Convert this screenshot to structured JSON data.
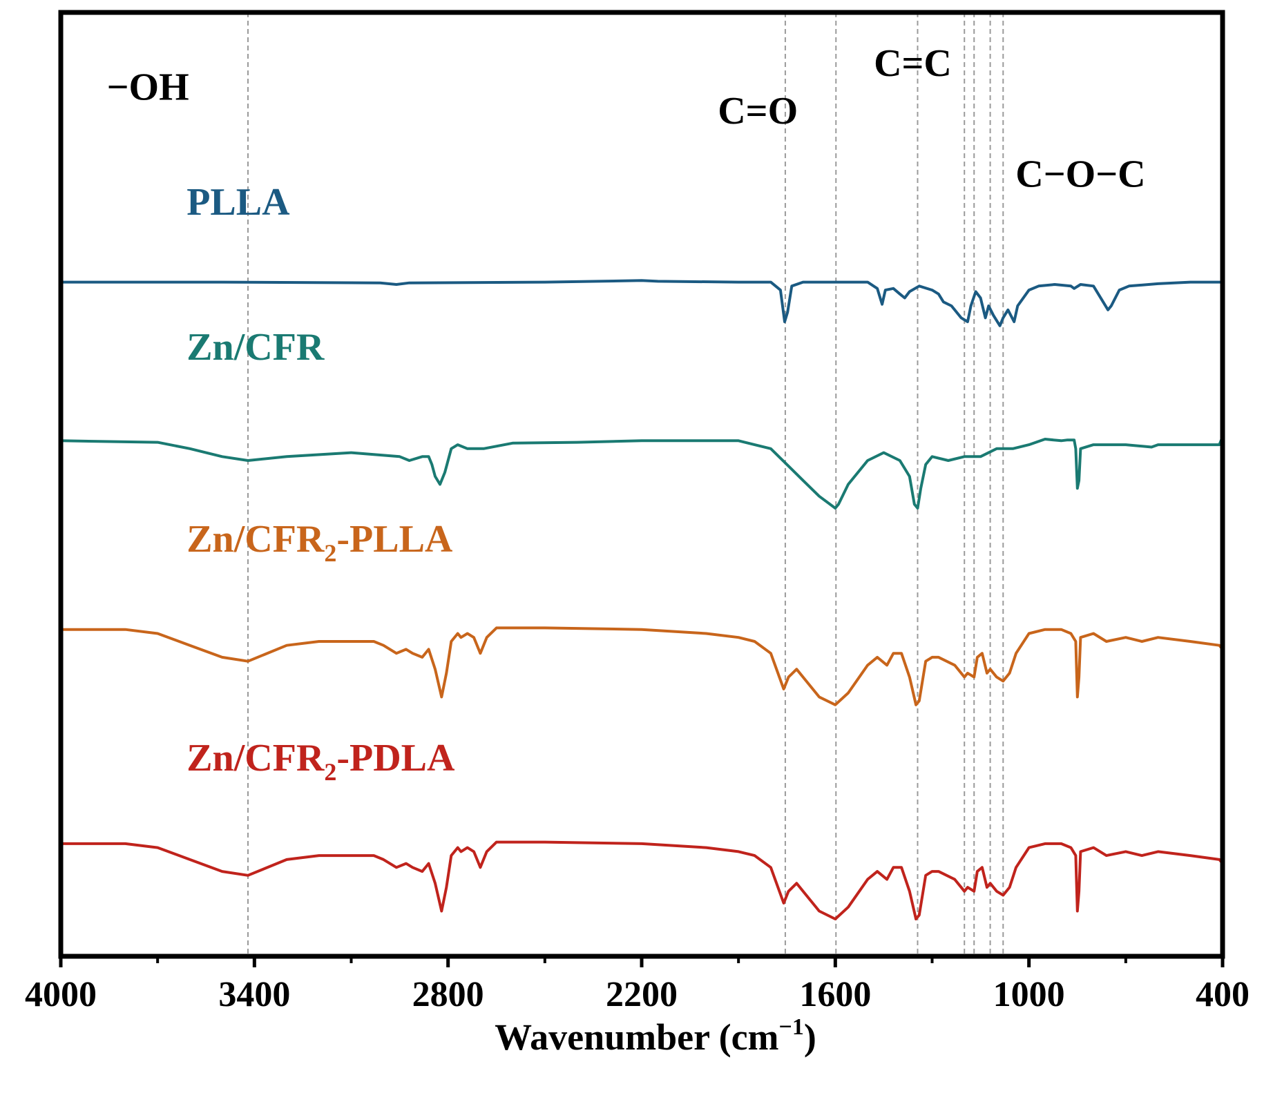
{
  "chart_data": {
    "type": "line",
    "title": "",
    "xlabel": "Wavenumber (cm",
    "xlabel_sup": "−1",
    "xlabel_close": ")",
    "ylabel": "",
    "xlim": [
      4000,
      400
    ],
    "x_reversed": true,
    "xticks": [
      4000,
      3400,
      2800,
      2200,
      1600,
      1000,
      400
    ],
    "xtick_labels": [
      "4000",
      "3400",
      "2800",
      "2200",
      "1600",
      "1000",
      "400"
    ],
    "minor_xticks": [
      3700,
      3100,
      2500,
      1900,
      1300,
      700
    ],
    "grid": false,
    "reference_lines": [
      3420,
      1755,
      1598,
      1345,
      1200,
      1170,
      1120,
      1080
    ],
    "annotations": [
      {
        "label": "−OH",
        "x": 3730,
        "y": 7.3
      },
      {
        "label": "C=O",
        "x": 1840,
        "y": 7.0
      },
      {
        "label": "C=C",
        "x": 1360,
        "y": 7.6
      },
      {
        "label": "C−O−C",
        "x": 840,
        "y": 6.2
      }
    ],
    "series": [
      {
        "name": "PLLA",
        "label_main": "PLLA",
        "label_sub": "",
        "label_tail": "",
        "color": "#1b5a82",
        "label_x": 3610,
        "label_y": 5.85,
        "offset": 5.0,
        "points": [
          [
            4000,
            0
          ],
          [
            3500,
            0
          ],
          [
            3010,
            -0.01
          ],
          [
            2960,
            -0.03
          ],
          [
            2920,
            -0.01
          ],
          [
            2500,
            0
          ],
          [
            2200,
            0.02
          ],
          [
            2150,
            0.01
          ],
          [
            1900,
            0
          ],
          [
            1800,
            0
          ],
          [
            1770,
            -0.1
          ],
          [
            1757,
            -0.5
          ],
          [
            1748,
            -0.38
          ],
          [
            1735,
            -0.05
          ],
          [
            1700,
            0
          ],
          [
            1500,
            0
          ],
          [
            1470,
            -0.08
          ],
          [
            1455,
            -0.28
          ],
          [
            1445,
            -0.1
          ],
          [
            1420,
            -0.08
          ],
          [
            1400,
            -0.15
          ],
          [
            1385,
            -0.2
          ],
          [
            1370,
            -0.12
          ],
          [
            1340,
            -0.05
          ],
          [
            1300,
            -0.1
          ],
          [
            1280,
            -0.15
          ],
          [
            1265,
            -0.25
          ],
          [
            1240,
            -0.3
          ],
          [
            1210,
            -0.45
          ],
          [
            1190,
            -0.5
          ],
          [
            1180,
            -0.3
          ],
          [
            1165,
            -0.12
          ],
          [
            1150,
            -0.2
          ],
          [
            1135,
            -0.45
          ],
          [
            1125,
            -0.3
          ],
          [
            1110,
            -0.42
          ],
          [
            1090,
            -0.55
          ],
          [
            1080,
            -0.45
          ],
          [
            1065,
            -0.35
          ],
          [
            1046,
            -0.5
          ],
          [
            1035,
            -0.3
          ],
          [
            1000,
            -0.1
          ],
          [
            970,
            -0.05
          ],
          [
            920,
            -0.03
          ],
          [
            870,
            -0.05
          ],
          [
            860,
            -0.08
          ],
          [
            840,
            -0.03
          ],
          [
            800,
            -0.05
          ],
          [
            755,
            -0.35
          ],
          [
            745,
            -0.3
          ],
          [
            720,
            -0.1
          ],
          [
            690,
            -0.05
          ],
          [
            600,
            -0.02
          ],
          [
            500,
            0
          ],
          [
            400,
            0
          ]
        ]
      },
      {
        "name": "Zn/CFR",
        "label_main": "Zn/CFR",
        "label_sub": "",
        "label_tail": "",
        "color": "#1a7a72",
        "label_x": 3610,
        "label_y": 4.02,
        "offset": 3.0,
        "points": [
          [
            4000,
            0
          ],
          [
            3700,
            -0.02
          ],
          [
            3600,
            -0.1
          ],
          [
            3500,
            -0.2
          ],
          [
            3420,
            -0.25
          ],
          [
            3300,
            -0.2
          ],
          [
            3100,
            -0.15
          ],
          [
            2950,
            -0.2
          ],
          [
            2920,
            -0.25
          ],
          [
            2880,
            -0.2
          ],
          [
            2860,
            -0.2
          ],
          [
            2850,
            -0.3
          ],
          [
            2840,
            -0.45
          ],
          [
            2825,
            -0.55
          ],
          [
            2810,
            -0.4
          ],
          [
            2790,
            -0.1
          ],
          [
            2770,
            -0.05
          ],
          [
            2740,
            -0.1
          ],
          [
            2690,
            -0.1
          ],
          [
            2600,
            -0.03
          ],
          [
            2400,
            -0.02
          ],
          [
            2200,
            0
          ],
          [
            2000,
            0
          ],
          [
            1900,
            0
          ],
          [
            1850,
            -0.05
          ],
          [
            1800,
            -0.1
          ],
          [
            1750,
            -0.3
          ],
          [
            1700,
            -0.5
          ],
          [
            1650,
            -0.7
          ],
          [
            1600,
            -0.85
          ],
          [
            1590,
            -0.8
          ],
          [
            1560,
            -0.55
          ],
          [
            1500,
            -0.25
          ],
          [
            1450,
            -0.15
          ],
          [
            1400,
            -0.25
          ],
          [
            1370,
            -0.45
          ],
          [
            1355,
            -0.8
          ],
          [
            1345,
            -0.85
          ],
          [
            1335,
            -0.6
          ],
          [
            1320,
            -0.3
          ],
          [
            1300,
            -0.2
          ],
          [
            1250,
            -0.25
          ],
          [
            1200,
            -0.2
          ],
          [
            1150,
            -0.2
          ],
          [
            1100,
            -0.1
          ],
          [
            1050,
            -0.1
          ],
          [
            1000,
            -0.05
          ],
          [
            950,
            0.02
          ],
          [
            900,
            0
          ],
          [
            880,
            0.01
          ],
          [
            860,
            0.01
          ],
          [
            855,
            -0.1
          ],
          [
            850,
            -0.6
          ],
          [
            845,
            -0.5
          ],
          [
            840,
            -0.1
          ],
          [
            800,
            -0.05
          ],
          [
            700,
            -0.05
          ],
          [
            620,
            -0.08
          ],
          [
            600,
            -0.05
          ],
          [
            500,
            -0.05
          ],
          [
            410,
            -0.05
          ],
          [
            400,
            0.05
          ]
        ]
      },
      {
        "name": "Zn/CFR2-PLLA",
        "label_main": "Zn/CFR",
        "label_sub": "2",
        "label_tail": "-PLLA",
        "color": "#c8651b",
        "label_x": 3610,
        "label_y": 1.6,
        "offset": 0.62,
        "points": [
          [
            4000,
            0
          ],
          [
            3800,
            0
          ],
          [
            3700,
            -0.05
          ],
          [
            3600,
            -0.2
          ],
          [
            3500,
            -0.35
          ],
          [
            3420,
            -0.4
          ],
          [
            3300,
            -0.2
          ],
          [
            3200,
            -0.15
          ],
          [
            3100,
            -0.15
          ],
          [
            3030,
            -0.15
          ],
          [
            3000,
            -0.2
          ],
          [
            2960,
            -0.3
          ],
          [
            2930,
            -0.25
          ],
          [
            2910,
            -0.3
          ],
          [
            2880,
            -0.35
          ],
          [
            2860,
            -0.25
          ],
          [
            2840,
            -0.5
          ],
          [
            2820,
            -0.85
          ],
          [
            2805,
            -0.55
          ],
          [
            2790,
            -0.15
          ],
          [
            2770,
            -0.05
          ],
          [
            2760,
            -0.1
          ],
          [
            2740,
            -0.05
          ],
          [
            2720,
            -0.1
          ],
          [
            2700,
            -0.3
          ],
          [
            2680,
            -0.1
          ],
          [
            2650,
            0.02
          ],
          [
            2500,
            0.02
          ],
          [
            2200,
            0
          ],
          [
            2000,
            -0.05
          ],
          [
            1900,
            -0.1
          ],
          [
            1850,
            -0.15
          ],
          [
            1800,
            -0.3
          ],
          [
            1760,
            -0.75
          ],
          [
            1745,
            -0.6
          ],
          [
            1720,
            -0.5
          ],
          [
            1700,
            -0.6
          ],
          [
            1650,
            -0.85
          ],
          [
            1600,
            -0.95
          ],
          [
            1560,
            -0.8
          ],
          [
            1500,
            -0.45
          ],
          [
            1470,
            -0.35
          ],
          [
            1440,
            -0.45
          ],
          [
            1420,
            -0.3
          ],
          [
            1395,
            -0.3
          ],
          [
            1370,
            -0.6
          ],
          [
            1350,
            -0.95
          ],
          [
            1340,
            -0.9
          ],
          [
            1320,
            -0.4
          ],
          [
            1300,
            -0.35
          ],
          [
            1280,
            -0.35
          ],
          [
            1230,
            -0.45
          ],
          [
            1200,
            -0.6
          ],
          [
            1190,
            -0.55
          ],
          [
            1170,
            -0.6
          ],
          [
            1160,
            -0.35
          ],
          [
            1145,
            -0.3
          ],
          [
            1130,
            -0.55
          ],
          [
            1120,
            -0.5
          ],
          [
            1100,
            -0.6
          ],
          [
            1080,
            -0.65
          ],
          [
            1060,
            -0.55
          ],
          [
            1040,
            -0.3
          ],
          [
            1000,
            -0.05
          ],
          [
            950,
            0
          ],
          [
            900,
            0
          ],
          [
            870,
            -0.05
          ],
          [
            855,
            -0.15
          ],
          [
            850,
            -0.85
          ],
          [
            845,
            -0.6
          ],
          [
            840,
            -0.1
          ],
          [
            800,
            -0.05
          ],
          [
            760,
            -0.15
          ],
          [
            700,
            -0.1
          ],
          [
            650,
            -0.15
          ],
          [
            600,
            -0.1
          ],
          [
            500,
            -0.15
          ],
          [
            410,
            -0.2
          ],
          [
            400,
            -0.25
          ]
        ]
      },
      {
        "name": "Zn/CFR2-PDLA",
        "label_main": "Zn/CFR",
        "label_sub": "2",
        "label_tail": "-PDLA",
        "color": "#c0231c",
        "label_x": 3610,
        "label_y": -1.16,
        "offset": -2.08,
        "points": [
          [
            4000,
            0
          ],
          [
            3800,
            0
          ],
          [
            3700,
            -0.05
          ],
          [
            3600,
            -0.2
          ],
          [
            3500,
            -0.35
          ],
          [
            3420,
            -0.4
          ],
          [
            3300,
            -0.2
          ],
          [
            3200,
            -0.15
          ],
          [
            3100,
            -0.15
          ],
          [
            3030,
            -0.15
          ],
          [
            3000,
            -0.2
          ],
          [
            2960,
            -0.3
          ],
          [
            2930,
            -0.25
          ],
          [
            2910,
            -0.3
          ],
          [
            2880,
            -0.35
          ],
          [
            2860,
            -0.25
          ],
          [
            2840,
            -0.5
          ],
          [
            2820,
            -0.85
          ],
          [
            2805,
            -0.55
          ],
          [
            2790,
            -0.15
          ],
          [
            2770,
            -0.05
          ],
          [
            2760,
            -0.1
          ],
          [
            2740,
            -0.05
          ],
          [
            2720,
            -0.1
          ],
          [
            2700,
            -0.3
          ],
          [
            2680,
            -0.1
          ],
          [
            2650,
            0.02
          ],
          [
            2500,
            0.02
          ],
          [
            2200,
            0
          ],
          [
            2000,
            -0.05
          ],
          [
            1900,
            -0.1
          ],
          [
            1850,
            -0.15
          ],
          [
            1800,
            -0.3
          ],
          [
            1760,
            -0.75
          ],
          [
            1745,
            -0.6
          ],
          [
            1720,
            -0.5
          ],
          [
            1700,
            -0.6
          ],
          [
            1650,
            -0.85
          ],
          [
            1600,
            -0.95
          ],
          [
            1560,
            -0.8
          ],
          [
            1500,
            -0.45
          ],
          [
            1470,
            -0.35
          ],
          [
            1440,
            -0.45
          ],
          [
            1420,
            -0.3
          ],
          [
            1395,
            -0.3
          ],
          [
            1370,
            -0.6
          ],
          [
            1350,
            -0.95
          ],
          [
            1340,
            -0.9
          ],
          [
            1320,
            -0.4
          ],
          [
            1300,
            -0.35
          ],
          [
            1280,
            -0.35
          ],
          [
            1230,
            -0.45
          ],
          [
            1200,
            -0.6
          ],
          [
            1190,
            -0.55
          ],
          [
            1170,
            -0.6
          ],
          [
            1160,
            -0.35
          ],
          [
            1145,
            -0.3
          ],
          [
            1130,
            -0.55
          ],
          [
            1120,
            -0.5
          ],
          [
            1100,
            -0.6
          ],
          [
            1080,
            -0.65
          ],
          [
            1060,
            -0.55
          ],
          [
            1040,
            -0.3
          ],
          [
            1000,
            -0.05
          ],
          [
            950,
            0
          ],
          [
            900,
            0
          ],
          [
            870,
            -0.05
          ],
          [
            855,
            -0.15
          ],
          [
            850,
            -0.85
          ],
          [
            845,
            -0.6
          ],
          [
            840,
            -0.1
          ],
          [
            800,
            -0.05
          ],
          [
            760,
            -0.15
          ],
          [
            700,
            -0.1
          ],
          [
            650,
            -0.15
          ],
          [
            600,
            -0.1
          ],
          [
            500,
            -0.15
          ],
          [
            410,
            -0.2
          ],
          [
            400,
            -0.25
          ]
        ]
      }
    ]
  }
}
